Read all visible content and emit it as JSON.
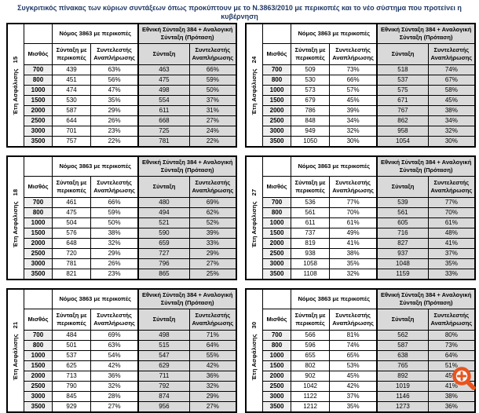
{
  "title": "Συγκριτικός  πίνακας των κύριων συντάξεων όπως προκύπτουν με το Ν.3863/2010 με περικοπές και το νέο σύστημα που προτείνει η κυβέρνηση",
  "labels": {
    "side_label": "Έτη Ασφάλισης",
    "group_law": "Νόμος 3863 με περικοπές",
    "group_proposal": "Εθνική Σύνταξη 384 + Αναλογική Σύνταξη (Πρόταση)",
    "col_salary": "Μισθός",
    "col_pension_cut": "Σύνταξη με περικοπές",
    "col_replacement_rate": "Συντελεστής Αναπλήρωσης",
    "col_pension": "Σύνταξη"
  },
  "colors": {
    "proposal_bg": "#D9D9D9",
    "salary_bg": "#EFEFEF",
    "border": "#000000",
    "title": "#203864",
    "zoom_icon": "#E8541E"
  },
  "icons": {
    "zoom_in": "zoom-in-icon"
  },
  "tables": [
    {
      "years": "15",
      "rows": [
        [
          "700",
          "439",
          "63%",
          "463",
          "66%"
        ],
        [
          "800",
          "451",
          "56%",
          "475",
          "59%"
        ],
        [
          "1000",
          "474",
          "47%",
          "498",
          "50%"
        ],
        [
          "1500",
          "530",
          "35%",
          "554",
          "37%"
        ],
        [
          "2000",
          "587",
          "29%",
          "611",
          "31%"
        ],
        [
          "2500",
          "644",
          "26%",
          "668",
          "27%"
        ],
        [
          "3000",
          "701",
          "23%",
          "725",
          "24%"
        ],
        [
          "3500",
          "757",
          "22%",
          "781",
          "22%"
        ]
      ]
    },
    {
      "years": "18",
      "rows": [
        [
          "700",
          "461",
          "66%",
          "480",
          "69%"
        ],
        [
          "800",
          "475",
          "59%",
          "494",
          "62%"
        ],
        [
          "1000",
          "504",
          "50%",
          "521",
          "52%"
        ],
        [
          "1500",
          "576",
          "38%",
          "590",
          "39%"
        ],
        [
          "2000",
          "648",
          "32%",
          "659",
          "33%"
        ],
        [
          "2500",
          "720",
          "29%",
          "727",
          "29%"
        ],
        [
          "3000",
          "781",
          "26%",
          "796",
          "27%"
        ],
        [
          "3500",
          "821",
          "23%",
          "865",
          "25%"
        ]
      ]
    },
    {
      "years": "21",
      "rows": [
        [
          "700",
          "484",
          "69%",
          "498",
          "71%"
        ],
        [
          "800",
          "501",
          "63%",
          "515",
          "64%"
        ],
        [
          "1000",
          "537",
          "54%",
          "547",
          "55%"
        ],
        [
          "1500",
          "625",
          "42%",
          "629",
          "42%"
        ],
        [
          "2000",
          "713",
          "36%",
          "711",
          "36%"
        ],
        [
          "2500",
          "790",
          "32%",
          "792",
          "32%"
        ],
        [
          "3000",
          "845",
          "28%",
          "874",
          "29%"
        ],
        [
          "3500",
          "929",
          "27%",
          "956",
          "27%"
        ]
      ]
    },
    {
      "years": "24",
      "rows": [
        [
          "700",
          "509",
          "73%",
          "518",
          "74%"
        ],
        [
          "800",
          "530",
          "66%",
          "537",
          "67%"
        ],
        [
          "1000",
          "573",
          "57%",
          "575",
          "58%"
        ],
        [
          "1500",
          "679",
          "45%",
          "671",
          "45%"
        ],
        [
          "2000",
          "786",
          "39%",
          "767",
          "38%"
        ],
        [
          "2500",
          "848",
          "34%",
          "862",
          "34%"
        ],
        [
          "3000",
          "949",
          "32%",
          "958",
          "32%"
        ],
        [
          "3500",
          "1050",
          "30%",
          "1054",
          "30%"
        ]
      ]
    },
    {
      "years": "27",
      "rows": [
        [
          "700",
          "536",
          "77%",
          "539",
          "77%"
        ],
        [
          "800",
          "561",
          "70%",
          "561",
          "70%"
        ],
        [
          "1000",
          "611",
          "61%",
          "605",
          "61%"
        ],
        [
          "1500",
          "737",
          "49%",
          "716",
          "48%"
        ],
        [
          "2000",
          "819",
          "41%",
          "827",
          "41%"
        ],
        [
          "2500",
          "938",
          "38%",
          "937",
          "37%"
        ],
        [
          "3000",
          "1058",
          "35%",
          "1048",
          "35%"
        ],
        [
          "3500",
          "1108",
          "32%",
          "1159",
          "33%"
        ]
      ]
    },
    {
      "years": "30",
      "rows": [
        [
          "700",
          "566",
          "81%",
          "562",
          "80%"
        ],
        [
          "800",
          "596",
          "74%",
          "587",
          "73%"
        ],
        [
          "1000",
          "655",
          "65%",
          "638",
          "64%"
        ],
        [
          "1500",
          "802",
          "53%",
          "765",
          "51%"
        ],
        [
          "2000",
          "902",
          "45%",
          "892",
          "45%"
        ],
        [
          "2500",
          "1042",
          "42%",
          "1019",
          "41%"
        ],
        [
          "3000",
          "1122",
          "37%",
          "1146",
          "38%"
        ],
        [
          "3500",
          "1212",
          "35%",
          "1273",
          "36%"
        ]
      ]
    }
  ]
}
